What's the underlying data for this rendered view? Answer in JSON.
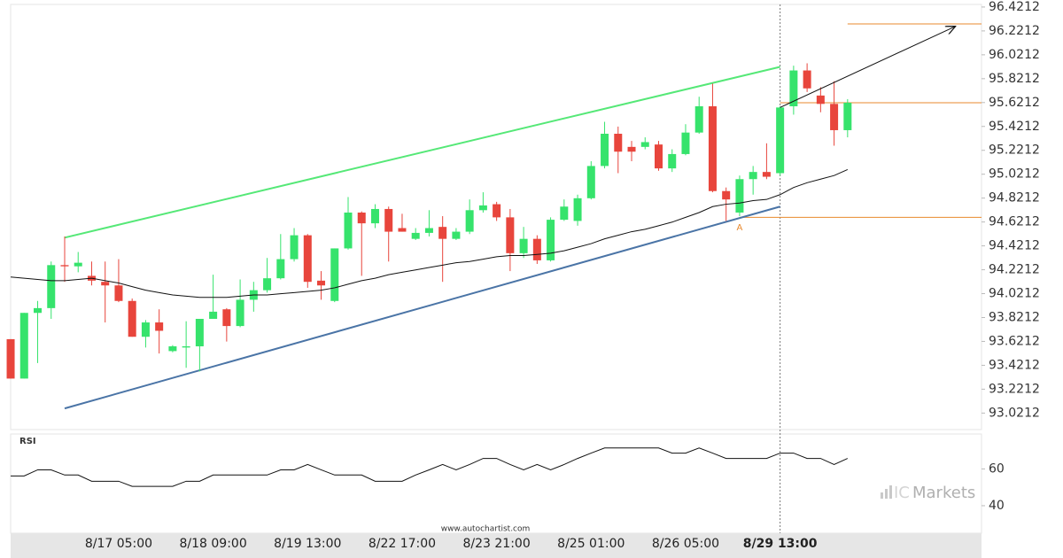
{
  "chart_data": [
    {
      "type": "candlestick",
      "categories": [
        null,
        null,
        null,
        null,
        null,
        null,
        null,
        null,
        "8/17 05:00",
        null,
        null,
        null,
        null,
        null,
        null,
        "8/18 09:00",
        null,
        null,
        null,
        null,
        null,
        null,
        "8/19 13:00",
        null,
        null,
        null,
        null,
        null,
        null,
        "8/22 17:00",
        null,
        null,
        null,
        null,
        null,
        null,
        "8/23 21:00",
        null,
        null,
        null,
        null,
        null,
        null,
        "8/25 01:00",
        null,
        null,
        null,
        null,
        null,
        null,
        "8/26 05:00",
        null,
        null,
        null,
        null,
        null,
        null,
        "8/29 13:00",
        null,
        null,
        null,
        null,
        null
      ],
      "open": [
        93.64,
        93.31,
        93.86,
        93.9,
        94.26,
        94.25,
        94.17,
        94.12,
        94.09,
        93.96,
        93.66,
        93.78,
        93.54,
        93.57,
        93.58,
        93.81,
        93.89,
        93.75,
        93.97,
        94.05,
        94.15,
        94.31,
        94.51,
        94.13,
        93.96,
        94.4,
        94.7,
        94.61,
        94.73,
        94.57,
        94.48,
        94.53,
        94.58,
        94.48,
        94.54,
        94.72,
        94.77,
        94.66,
        94.36,
        94.48,
        94.3,
        94.64,
        94.63,
        94.82,
        95.09,
        95.36,
        95.25,
        95.25,
        95.27,
        95.07,
        95.19,
        95.37,
        95.59,
        94.88,
        94.7,
        94.98,
        95.04,
        95.03,
        95.59,
        95.89,
        95.68,
        95.61,
        95.39
      ],
      "high": [
        93.64,
        93.86,
        93.96,
        94.29,
        94.5,
        94.37,
        94.29,
        94.29,
        94.31,
        93.98,
        93.8,
        93.89,
        93.59,
        93.79,
        93.81,
        94.18,
        93.9,
        94.14,
        94.12,
        94.32,
        94.52,
        94.57,
        94.52,
        94.21,
        94.4,
        94.83,
        94.71,
        94.77,
        94.75,
        94.69,
        94.57,
        94.72,
        94.67,
        94.57,
        94.81,
        94.87,
        94.79,
        94.73,
        94.58,
        94.51,
        94.66,
        94.81,
        94.85,
        95.13,
        95.46,
        95.42,
        95.3,
        95.33,
        95.3,
        95.23,
        95.44,
        95.67,
        95.78,
        94.91,
        95.01,
        95.09,
        95.28,
        95.59,
        95.93,
        95.95,
        95.75,
        95.8,
        95.65
      ],
      "low": [
        93.31,
        93.31,
        93.44,
        93.81,
        94.12,
        94.2,
        94.09,
        93.78,
        93.95,
        93.66,
        93.57,
        93.52,
        93.53,
        93.4,
        93.37,
        93.81,
        93.62,
        93.74,
        93.87,
        94.03,
        94.14,
        94.29,
        94.07,
        93.97,
        93.95,
        94.39,
        94.17,
        94.57,
        94.29,
        94.54,
        94.47,
        94.5,
        94.12,
        94.47,
        94.52,
        94.7,
        94.63,
        94.21,
        94.32,
        94.27,
        94.29,
        94.63,
        94.59,
        94.81,
        95.07,
        95.03,
        95.13,
        95.23,
        95.05,
        95.04,
        95.18,
        95.36,
        94.87,
        94.63,
        94.67,
        94.85,
        94.98,
        95.01,
        95.52,
        95.71,
        95.54,
        95.26,
        95.33
      ],
      "close": [
        93.31,
        93.86,
        93.9,
        94.26,
        94.25,
        94.28,
        94.13,
        94.09,
        93.96,
        93.66,
        93.78,
        93.71,
        93.58,
        93.58,
        93.81,
        93.87,
        93.75,
        93.97,
        94.05,
        94.15,
        94.31,
        94.51,
        94.12,
        94.09,
        94.4,
        94.7,
        94.61,
        94.73,
        94.54,
        94.54,
        94.53,
        94.57,
        94.48,
        94.54,
        94.72,
        94.76,
        94.66,
        94.36,
        94.48,
        94.3,
        94.64,
        94.75,
        94.82,
        95.09,
        95.36,
        95.21,
        95.21,
        95.29,
        95.07,
        95.19,
        95.37,
        95.59,
        94.88,
        94.81,
        94.98,
        95.04,
        95.0,
        95.58,
        95.89,
        95.74,
        95.61,
        95.39,
        95.62
      ],
      "ma_values": [
        94.16,
        94.15,
        94.14,
        94.13,
        94.13,
        94.14,
        94.15,
        94.13,
        94.11,
        94.08,
        94.05,
        94.03,
        94.01,
        94.0,
        93.99,
        93.99,
        93.99,
        94.0,
        94.01,
        94.01,
        94.02,
        94.03,
        94.04,
        94.05,
        94.07,
        94.1,
        94.13,
        94.15,
        94.18,
        94.2,
        94.22,
        94.24,
        94.26,
        94.28,
        94.29,
        94.31,
        94.33,
        94.34,
        94.34,
        94.35,
        94.36,
        94.38,
        94.41,
        94.44,
        94.48,
        94.51,
        94.54,
        94.56,
        94.59,
        94.62,
        94.66,
        94.7,
        94.75,
        94.77,
        94.78,
        94.8,
        94.81,
        94.85,
        94.91,
        94.95,
        94.98,
        95.01,
        95.06
      ],
      "up_color": "#36e36c",
      "down_color": "#e8453c",
      "ma_color": "#111111",
      "xlim": [
        -0.79,
        71.92
      ],
      "ylim": [
        92.92,
        96.48
      ],
      "yticks": [
        96.4212,
        96.2212,
        96.0212,
        95.8212,
        95.6212,
        95.4212,
        95.2212,
        95.0212,
        94.8212,
        94.6212,
        94.4212,
        94.2212,
        94.0212,
        93.8212,
        93.6212,
        93.4212,
        93.2212,
        93.0212
      ],
      "trendlines": [
        {
          "color": "#55e877",
          "from": [
            4,
            94.49
          ],
          "to": [
            57,
            95.92
          ]
        },
        {
          "color": "#4a74a6",
          "from": [
            4,
            93.06
          ],
          "to": [
            57,
            94.75
          ]
        }
      ],
      "arrow": {
        "color": "#111111",
        "from": [
          57,
          95.58
        ],
        "to": [
          70,
          96.26
        ]
      },
      "levels": [
        {
          "value": 96.28,
          "start": 62,
          "color": "#e8892e"
        },
        {
          "value": 95.62,
          "start": 57,
          "color": "#e8892e"
        },
        {
          "value": 94.66,
          "start": 54,
          "color": "#e8892e"
        }
      ],
      "annotation": {
        "text": "A",
        "x": 54,
        "y": 94.62
      },
      "marker_x": 57,
      "source": "www.autochartist.com",
      "logo": {
        "prefix": "IC",
        "suffix": "Markets"
      }
    },
    {
      "type": "line",
      "title": "RSI",
      "color": "#111111",
      "values": [
        56.2,
        56.2,
        59.5,
        59.5,
        56.7,
        56.7,
        53.3,
        53.3,
        53.3,
        50.5,
        50.5,
        50.5,
        50.5,
        53.3,
        53.3,
        56.7,
        56.7,
        56.7,
        56.7,
        56.7,
        59.5,
        59.5,
        62.4,
        59.5,
        56.7,
        56.7,
        56.7,
        53.3,
        53.3,
        53.3,
        56.7,
        59.5,
        62.4,
        59.5,
        62.4,
        65.7,
        65.7,
        62.4,
        59.5,
        62.4,
        59.5,
        62.4,
        65.7,
        68.6,
        71.4,
        71.4,
        71.4,
        71.4,
        71.4,
        68.6,
        68.6,
        71.4,
        68.6,
        65.7,
        65.7,
        65.7,
        65.7,
        68.6,
        68.6,
        65.7,
        65.7,
        62.4,
        65.7
      ],
      "ylim": [
        26,
        79
      ],
      "yticks": [
        60,
        40
      ]
    }
  ]
}
